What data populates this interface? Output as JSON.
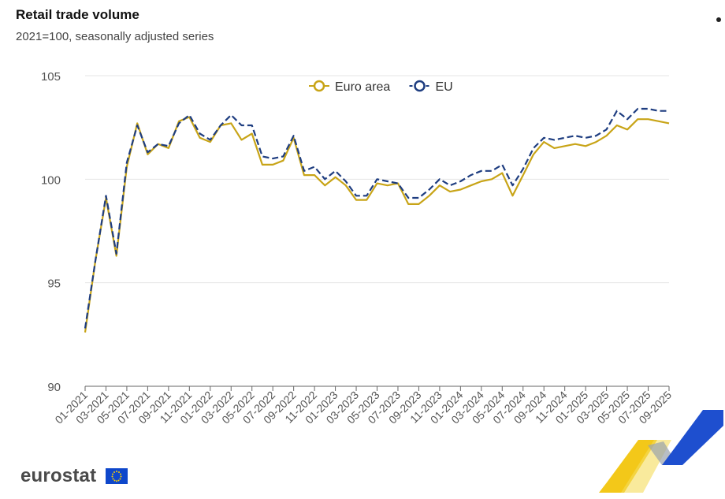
{
  "title": "Retail trade volume",
  "subtitle": "2021=100, seasonally adjusted series",
  "logo": {
    "text": "eurostat"
  },
  "chart_data": {
    "type": "line",
    "ylim": [
      90,
      105
    ],
    "yticks": [
      90,
      95,
      100,
      105
    ],
    "x": [
      "01-2021",
      "02-2021",
      "03-2021",
      "04-2021",
      "05-2021",
      "06-2021",
      "07-2021",
      "08-2021",
      "09-2021",
      "10-2021",
      "11-2021",
      "12-2021",
      "01-2022",
      "02-2022",
      "03-2022",
      "04-2022",
      "05-2022",
      "06-2022",
      "07-2022",
      "08-2022",
      "09-2022",
      "10-2022",
      "11-2022",
      "12-2022",
      "01-2023",
      "02-2023",
      "03-2023",
      "04-2023",
      "05-2023",
      "06-2023",
      "07-2023",
      "08-2023",
      "09-2023",
      "10-2023",
      "11-2023",
      "12-2023",
      "01-2024",
      "02-2024",
      "03-2024",
      "04-2024",
      "05-2024",
      "06-2024",
      "07-2024",
      "08-2024",
      "09-2024",
      "10-2024",
      "11-2024",
      "12-2024",
      "01-2025",
      "02-2025",
      "03-2025",
      "04-2025",
      "05-2025",
      "06-2025",
      "07-2025",
      "08-2025",
      "09-2025"
    ],
    "xtick_labels": [
      "01-2021",
      "03-2021",
      "05-2021",
      "07-2021",
      "09-2021",
      "11-2021",
      "01-2022",
      "03-2022",
      "05-2022",
      "07-2022",
      "09-2022",
      "11-2022",
      "01-2023",
      "03-2023",
      "05-2023",
      "07-2023",
      "09-2023",
      "11-2023",
      "01-2024",
      "03-2024",
      "05-2024",
      "07-2024",
      "09-2024",
      "11-2024",
      "01-2025",
      "03-2025",
      "05-2025",
      "07-2025",
      "09-2025"
    ],
    "legend_position": "top-center",
    "grid": true,
    "series": [
      {
        "name": "Euro area",
        "color": "#c8a417",
        "dash": "solid",
        "values": [
          92.6,
          96.1,
          99.1,
          96.3,
          100.6,
          102.7,
          101.2,
          101.7,
          101.5,
          102.8,
          103.0,
          102.0,
          101.8,
          102.6,
          102.7,
          101.9,
          102.2,
          100.7,
          100.7,
          100.9,
          102.0,
          100.2,
          100.2,
          99.7,
          100.1,
          99.7,
          99.0,
          99.0,
          99.8,
          99.7,
          99.8,
          98.8,
          98.8,
          99.2,
          99.7,
          99.4,
          99.5,
          99.7,
          99.9,
          100.0,
          100.3,
          99.2,
          100.2,
          101.2,
          101.8,
          101.5,
          101.6,
          101.7,
          101.6,
          101.8,
          102.1,
          102.6,
          102.4,
          102.9,
          102.9,
          102.8,
          102.7
        ]
      },
      {
        "name": "EU",
        "color": "#1e3d80",
        "dash": "dashed",
        "values": [
          92.8,
          96.1,
          99.2,
          96.4,
          100.8,
          102.6,
          101.3,
          101.7,
          101.6,
          102.7,
          103.1,
          102.2,
          101.9,
          102.6,
          103.1,
          102.6,
          102.6,
          101.1,
          101.0,
          101.1,
          102.1,
          100.4,
          100.6,
          100.0,
          100.4,
          99.9,
          99.2,
          99.2,
          100.0,
          99.9,
          99.8,
          99.1,
          99.1,
          99.5,
          100.0,
          99.7,
          99.9,
          100.2,
          100.4,
          100.4,
          100.7,
          99.7,
          100.5,
          101.5,
          102.0,
          101.9,
          102.0,
          102.1,
          102.0,
          102.1,
          102.4,
          103.3,
          102.9,
          103.4,
          103.4,
          103.3,
          103.3
        ]
      }
    ]
  }
}
